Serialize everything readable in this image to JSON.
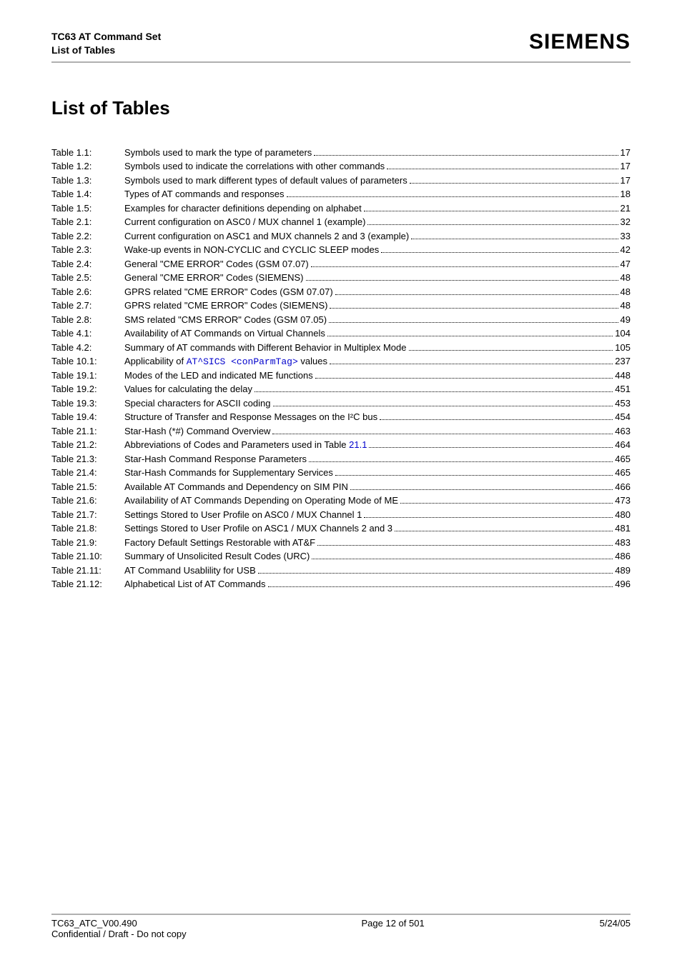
{
  "header": {
    "title_line1": "TC63 AT Command Set",
    "title_line2": "List of Tables",
    "brand": "SIEMENS"
  },
  "page_title": "List of Tables",
  "toc": [
    {
      "label": "Table 1.1:",
      "desc": "Symbols used to mark the type of parameters ",
      "page": "17"
    },
    {
      "label": "Table 1.2:",
      "desc": "Symbols used to indicate the correlations with other commands ",
      "page": "17"
    },
    {
      "label": "Table 1.3:",
      "desc": "Symbols used to mark different types of default values of parameters ",
      "page": "17"
    },
    {
      "label": "Table 1.4:",
      "desc": "Types of AT commands and responses ",
      "page": "18"
    },
    {
      "label": "Table 1.5:",
      "desc": "Examples for character definitions depending on alphabet",
      "page": "21"
    },
    {
      "label": "Table 2.1:",
      "desc": "Current configuration on ASC0 / MUX channel 1 (example)",
      "page": "32"
    },
    {
      "label": "Table 2.2:",
      "desc": "Current configuration on ASC1 and MUX channels 2 and 3 (example) ",
      "page": "33"
    },
    {
      "label": "Table 2.3:",
      "desc": "Wake-up events in NON-CYCLIC and CYCLIC SLEEP modes",
      "page": "42"
    },
    {
      "label": "Table 2.4:",
      "desc": "General \"CME ERROR\" Codes (GSM 07.07) ",
      "page": "47"
    },
    {
      "label": "Table 2.5:",
      "desc": "General \"CME ERROR\" Codes (SIEMENS) ",
      "page": "48"
    },
    {
      "label": "Table 2.6:",
      "desc": "GPRS related \"CME ERROR\" Codes (GSM 07.07) ",
      "page": "48"
    },
    {
      "label": "Table 2.7:",
      "desc": "GPRS related \"CME ERROR\" Codes (SIEMENS) ",
      "page": "48"
    },
    {
      "label": "Table 2.8:",
      "desc": "SMS related \"CMS ERROR\" Codes (GSM 07.05) ",
      "page": "49"
    },
    {
      "label": "Table 4.1:",
      "desc": "Availability of AT Commands on Virtual Channels ",
      "page": "104"
    },
    {
      "label": "Table 4.2:",
      "desc": "Summary of AT commands with Different Behavior in Multiplex Mode ",
      "page": "105"
    },
    {
      "label": "Table 10.1:",
      "desc_pre": "Applicability of ",
      "code": "AT^SICS <conParmTag>",
      "desc_post": " values ",
      "page": "237"
    },
    {
      "label": "Table 19.1:",
      "desc": "Modes of the LED and indicated ME functions",
      "page": "448"
    },
    {
      "label": "Table 19.2:",
      "desc": "Values for calculating the delay",
      "page": "451"
    },
    {
      "label": "Table 19.3:",
      "desc": "Special characters for ASCII coding",
      "page": "453"
    },
    {
      "label": "Table 19.4:",
      "desc": "Structure of Transfer and Response Messages on the I²C bus",
      "page": "454"
    },
    {
      "label": "Table 21.1:",
      "desc": "Star-Hash (*#) Command Overview ",
      "page": "463"
    },
    {
      "label": "Table 21.2:",
      "desc_pre": "Abbreviations of Codes and Parameters used in Table ",
      "link": "21.1",
      "desc_post": " ",
      "page": "464"
    },
    {
      "label": "Table 21.3:",
      "desc": "Star-Hash Command Response Parameters ",
      "page": "465"
    },
    {
      "label": "Table 21.4:",
      "desc": "Star-Hash Commands for Supplementary Services ",
      "page": "465"
    },
    {
      "label": "Table 21.5:",
      "desc": "Available AT Commands and Dependency on SIM PIN",
      "page": "466"
    },
    {
      "label": "Table 21.6:",
      "desc": "Availability of AT Commands Depending on Operating Mode of ME ",
      "page": "473"
    },
    {
      "label": "Table 21.7:",
      "desc": "Settings Stored to User Profile on ASC0 / MUX Channel 1",
      "page": "480"
    },
    {
      "label": "Table 21.8:",
      "desc": "Settings Stored to User Profile on ASC1 / MUX Channels 2 and 3",
      "page": "481"
    },
    {
      "label": "Table 21.9:",
      "desc": "Factory Default Settings Restorable with AT&F ",
      "page": "483"
    },
    {
      "label": "Table 21.10:",
      "desc": "Summary of Unsolicited Result Codes (URC)",
      "page": "486"
    },
    {
      "label": "Table 21.11:",
      "desc": "AT Command Usablility for USB",
      "page": "489"
    },
    {
      "label": "Table 21.12:",
      "desc": "Alphabetical List of AT Commands",
      "page": "496"
    }
  ],
  "footer": {
    "left_line1": "TC63_ATC_V00.490",
    "left_line2": "Confidential / Draft - Do not copy",
    "center": "Page 12 of 501",
    "right": "5/24/05"
  }
}
